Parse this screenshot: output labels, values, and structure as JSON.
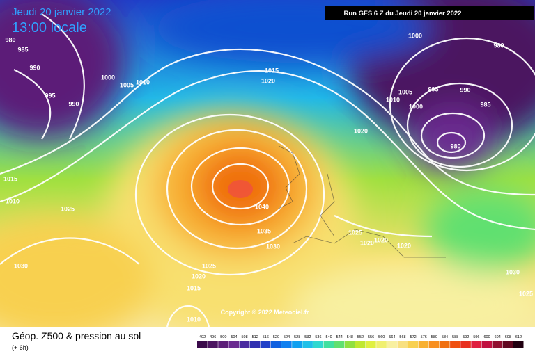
{
  "header": {
    "date": "Jeudi 20 janvier 2022",
    "time": "13:00 locale",
    "run": "Run GFS 6 Z du Jeudi 20 janvier 2022"
  },
  "copyright": "Copyright © 2022 Meteociel.fr",
  "caption": {
    "title": "Géop. Z500 & pression au sol",
    "lead": "(+ 6h)"
  },
  "pressure_labels": [
    "980",
    "985",
    "990",
    "995",
    "990",
    "1000",
    "1005",
    "1010",
    "1015",
    "1020",
    "1000",
    "980",
    "1005",
    "995",
    "990",
    "1010",
    "1000",
    "985",
    "980",
    "1020",
    "1015",
    "1010",
    "1025",
    "1040",
    "1035",
    "1030",
    "1025",
    "1020",
    "1020",
    "1020",
    "1030",
    "1025",
    "1020",
    "1015",
    "1010",
    "1030",
    "1025"
  ],
  "legend": {
    "labels": [
      "492",
      "496",
      "500",
      "504",
      "508",
      "512",
      "516",
      "520",
      "524",
      "528",
      "532",
      "536",
      "540",
      "544",
      "548",
      "552",
      "556",
      "560",
      "564",
      "568",
      "572",
      "576",
      "580",
      "584",
      "588",
      "592",
      "596",
      "600",
      "604",
      "608",
      "612"
    ],
    "colors": [
      "#3a0a4a",
      "#4b1460",
      "#5c1e78",
      "#6a2a90",
      "#4a2aa0",
      "#3030b0",
      "#2040c8",
      "#1060e0",
      "#1080f0",
      "#10a0f0",
      "#20c0e8",
      "#30d8d0",
      "#40e0a0",
      "#60e070",
      "#90e040",
      "#c0e830",
      "#e0f040",
      "#f0f070",
      "#f8f0a0",
      "#f8e080",
      "#f8d050",
      "#f8b030",
      "#f89020",
      "#f07010",
      "#f05010",
      "#e83020",
      "#e02040",
      "#c01040",
      "#901030",
      "#600820",
      "#200010"
    ]
  }
}
